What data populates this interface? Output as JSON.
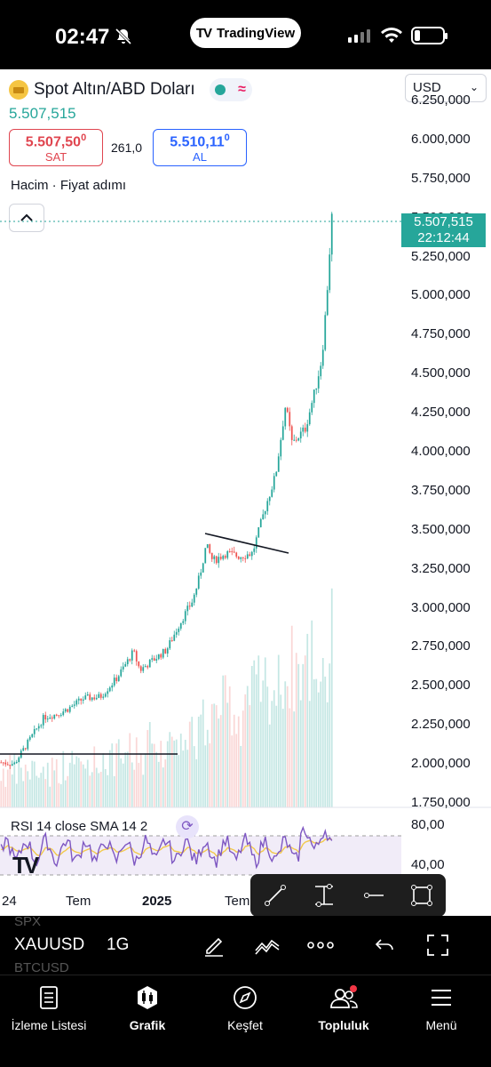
{
  "status_bar": {
    "time": "02:47",
    "app_pill": "TradingView"
  },
  "symbol": {
    "title": "Spot Altın/ABD Doları",
    "currency": "USD",
    "last_price": "5.507,515",
    "sell_price": "5.507,50",
    "sell_price_sup": "0",
    "sell_label": "SAT",
    "spread": "261,0",
    "buy_price": "5.510,11",
    "buy_price_sup": "0",
    "buy_label": "AL"
  },
  "chart_labels": {
    "volume_label": "Hacim · Fiyat adımı"
  },
  "price_tag": {
    "price": "5.507,515",
    "countdown": "22:12:44"
  },
  "rsi": {
    "label": "RSI 14 close SMA 14 2",
    "axis": [
      "80,00",
      "40,00"
    ]
  },
  "time_axis": [
    "24",
    "Tem",
    "2025",
    "Tem"
  ],
  "toolbar": {
    "symbol": "XAUUSD",
    "interval": "1G",
    "ghost_above": "SPX",
    "ghost_below": "BTCUSD"
  },
  "nav": {
    "items": [
      {
        "label": "İzleme Listesi",
        "icon": "watchlist-icon"
      },
      {
        "label": "Grafik",
        "icon": "chart-icon"
      },
      {
        "label": "Keşfet",
        "icon": "compass-icon"
      },
      {
        "label": "Topluluk",
        "icon": "community-icon"
      },
      {
        "label": "Menü",
        "icon": "menu-icon"
      }
    ]
  },
  "colors": {
    "up": "#26a69a",
    "down": "#ef5350",
    "rsi": "#7e57c2",
    "rsi_ma": "#f2c94c",
    "sell": "#e0454f",
    "buy": "#2962ff"
  },
  "chart_data": {
    "type": "candlestick",
    "title": "Spot Altın/ABD Doları",
    "x_tick_labels": [
      "24",
      "Tem",
      "2025",
      "Tem"
    ],
    "y_tick_labels": [
      "6.250,000",
      "6.000,000",
      "5.750,000",
      "5.500,000",
      "5.250,000",
      "5.000,000",
      "4.750,000",
      "4.500,000",
      "4.250,000",
      "4.000,000",
      "3.750,000",
      "3.500,000",
      "3.250,000",
      "3.000,000",
      "2.750,000",
      "2.500,000",
      "2.250,000",
      "2.000,000",
      "1.750,000"
    ],
    "ylim": [
      1750,
      6250
    ],
    "last_value": 5507.515,
    "price_keypoints": [
      [
        0,
        2010
      ],
      [
        0.04,
        2000
      ],
      [
        0.07,
        2100
      ],
      [
        0.1,
        2200
      ],
      [
        0.13,
        2300
      ],
      [
        0.17,
        2320
      ],
      [
        0.2,
        2350
      ],
      [
        0.25,
        2420
      ],
      [
        0.3,
        2430
      ],
      [
        0.35,
        2550
      ],
      [
        0.38,
        2650
      ],
      [
        0.4,
        2720
      ],
      [
        0.42,
        2600
      ],
      [
        0.45,
        2650
      ],
      [
        0.5,
        2730
      ],
      [
        0.54,
        2900
      ],
      [
        0.58,
        3050
      ],
      [
        0.6,
        3200
      ],
      [
        0.62,
        3400
      ],
      [
        0.64,
        3300
      ],
      [
        0.68,
        3350
      ],
      [
        0.72,
        3330
      ],
      [
        0.76,
        3350
      ],
      [
        0.8,
        3650
      ],
      [
        0.83,
        3850
      ],
      [
        0.86,
        4300
      ],
      [
        0.88,
        4050
      ],
      [
        0.92,
        4150
      ],
      [
        0.95,
        4400
      ],
      [
        0.97,
        4600
      ],
      [
        0.985,
        5000
      ],
      [
        1.0,
        5507
      ]
    ],
    "annotations": [
      "horizontal-line-2067",
      "trendline-3490-to-3380"
    ],
    "rsi_range": [
      30,
      90
    ],
    "rsi_levels": [
      70,
      30
    ]
  }
}
